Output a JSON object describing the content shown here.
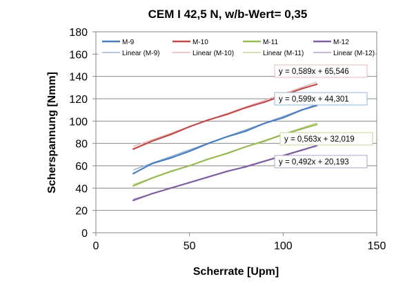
{
  "chart_data": {
    "type": "line",
    "title": "CEM I 42,5 N, w/b-Wert= 0,35",
    "xlabel": "Scherrate [Upm]",
    "ylabel": "Scherspannung [Nmm]",
    "xlim": [
      0,
      150
    ],
    "ylim": [
      0,
      180
    ],
    "xticks": [
      0,
      50,
      100,
      150
    ],
    "yticks": [
      0,
      20,
      40,
      60,
      80,
      100,
      120,
      140,
      160,
      180
    ],
    "grid": true,
    "legend": {
      "placement": "top",
      "entries": [
        "M-9",
        "M-10",
        "M-11",
        "M-12",
        "Linear (M-9)",
        "Linear (M-10)",
        "Linear (M-11)",
        "Linear (M-12)"
      ]
    },
    "x": [
      20,
      30,
      40,
      50,
      60,
      70,
      80,
      90,
      100,
      110,
      118
    ],
    "series": [
      {
        "name": "M-9",
        "color": "#4a7ebb",
        "values": [
          53,
          62,
          67,
          73,
          80,
          86,
          91,
          98,
          103,
          110,
          114
        ]
      },
      {
        "name": "M-10",
        "color": "#be4b48",
        "values": [
          75,
          82,
          88,
          95,
          101,
          106,
          112,
          117,
          123,
          129,
          133
        ]
      },
      {
        "name": "M-11",
        "color": "#98b954",
        "values": [
          42,
          49,
          55,
          60,
          66,
          71,
          77,
          82,
          88,
          93,
          97
        ]
      },
      {
        "name": "M-12",
        "color": "#7d60a0",
        "values": [
          29,
          35,
          40,
          45,
          50,
          55,
          59,
          64,
          69,
          74,
          78
        ]
      }
    ],
    "trendlines": [
      {
        "name": "Linear (M-9)",
        "color": "#95b3d7",
        "slope": 0.599,
        "intercept": 44.301,
        "equation": "y = 0,599x + 44,301"
      },
      {
        "name": "Linear (M-10)",
        "color": "#e6b9b8",
        "slope": 0.589,
        "intercept": 65.546,
        "equation": "y = 0,589x + 65,546"
      },
      {
        "name": "Linear (M-11)",
        "color": "#c3d69b",
        "slope": 0.563,
        "intercept": 32.019,
        "equation": "y = 0,563x + 32,019"
      },
      {
        "name": "Linear (M-12)",
        "color": "#b3a2c7",
        "slope": 0.492,
        "intercept": 20.193,
        "equation": "y = 0,492x + 20,193"
      }
    ]
  }
}
